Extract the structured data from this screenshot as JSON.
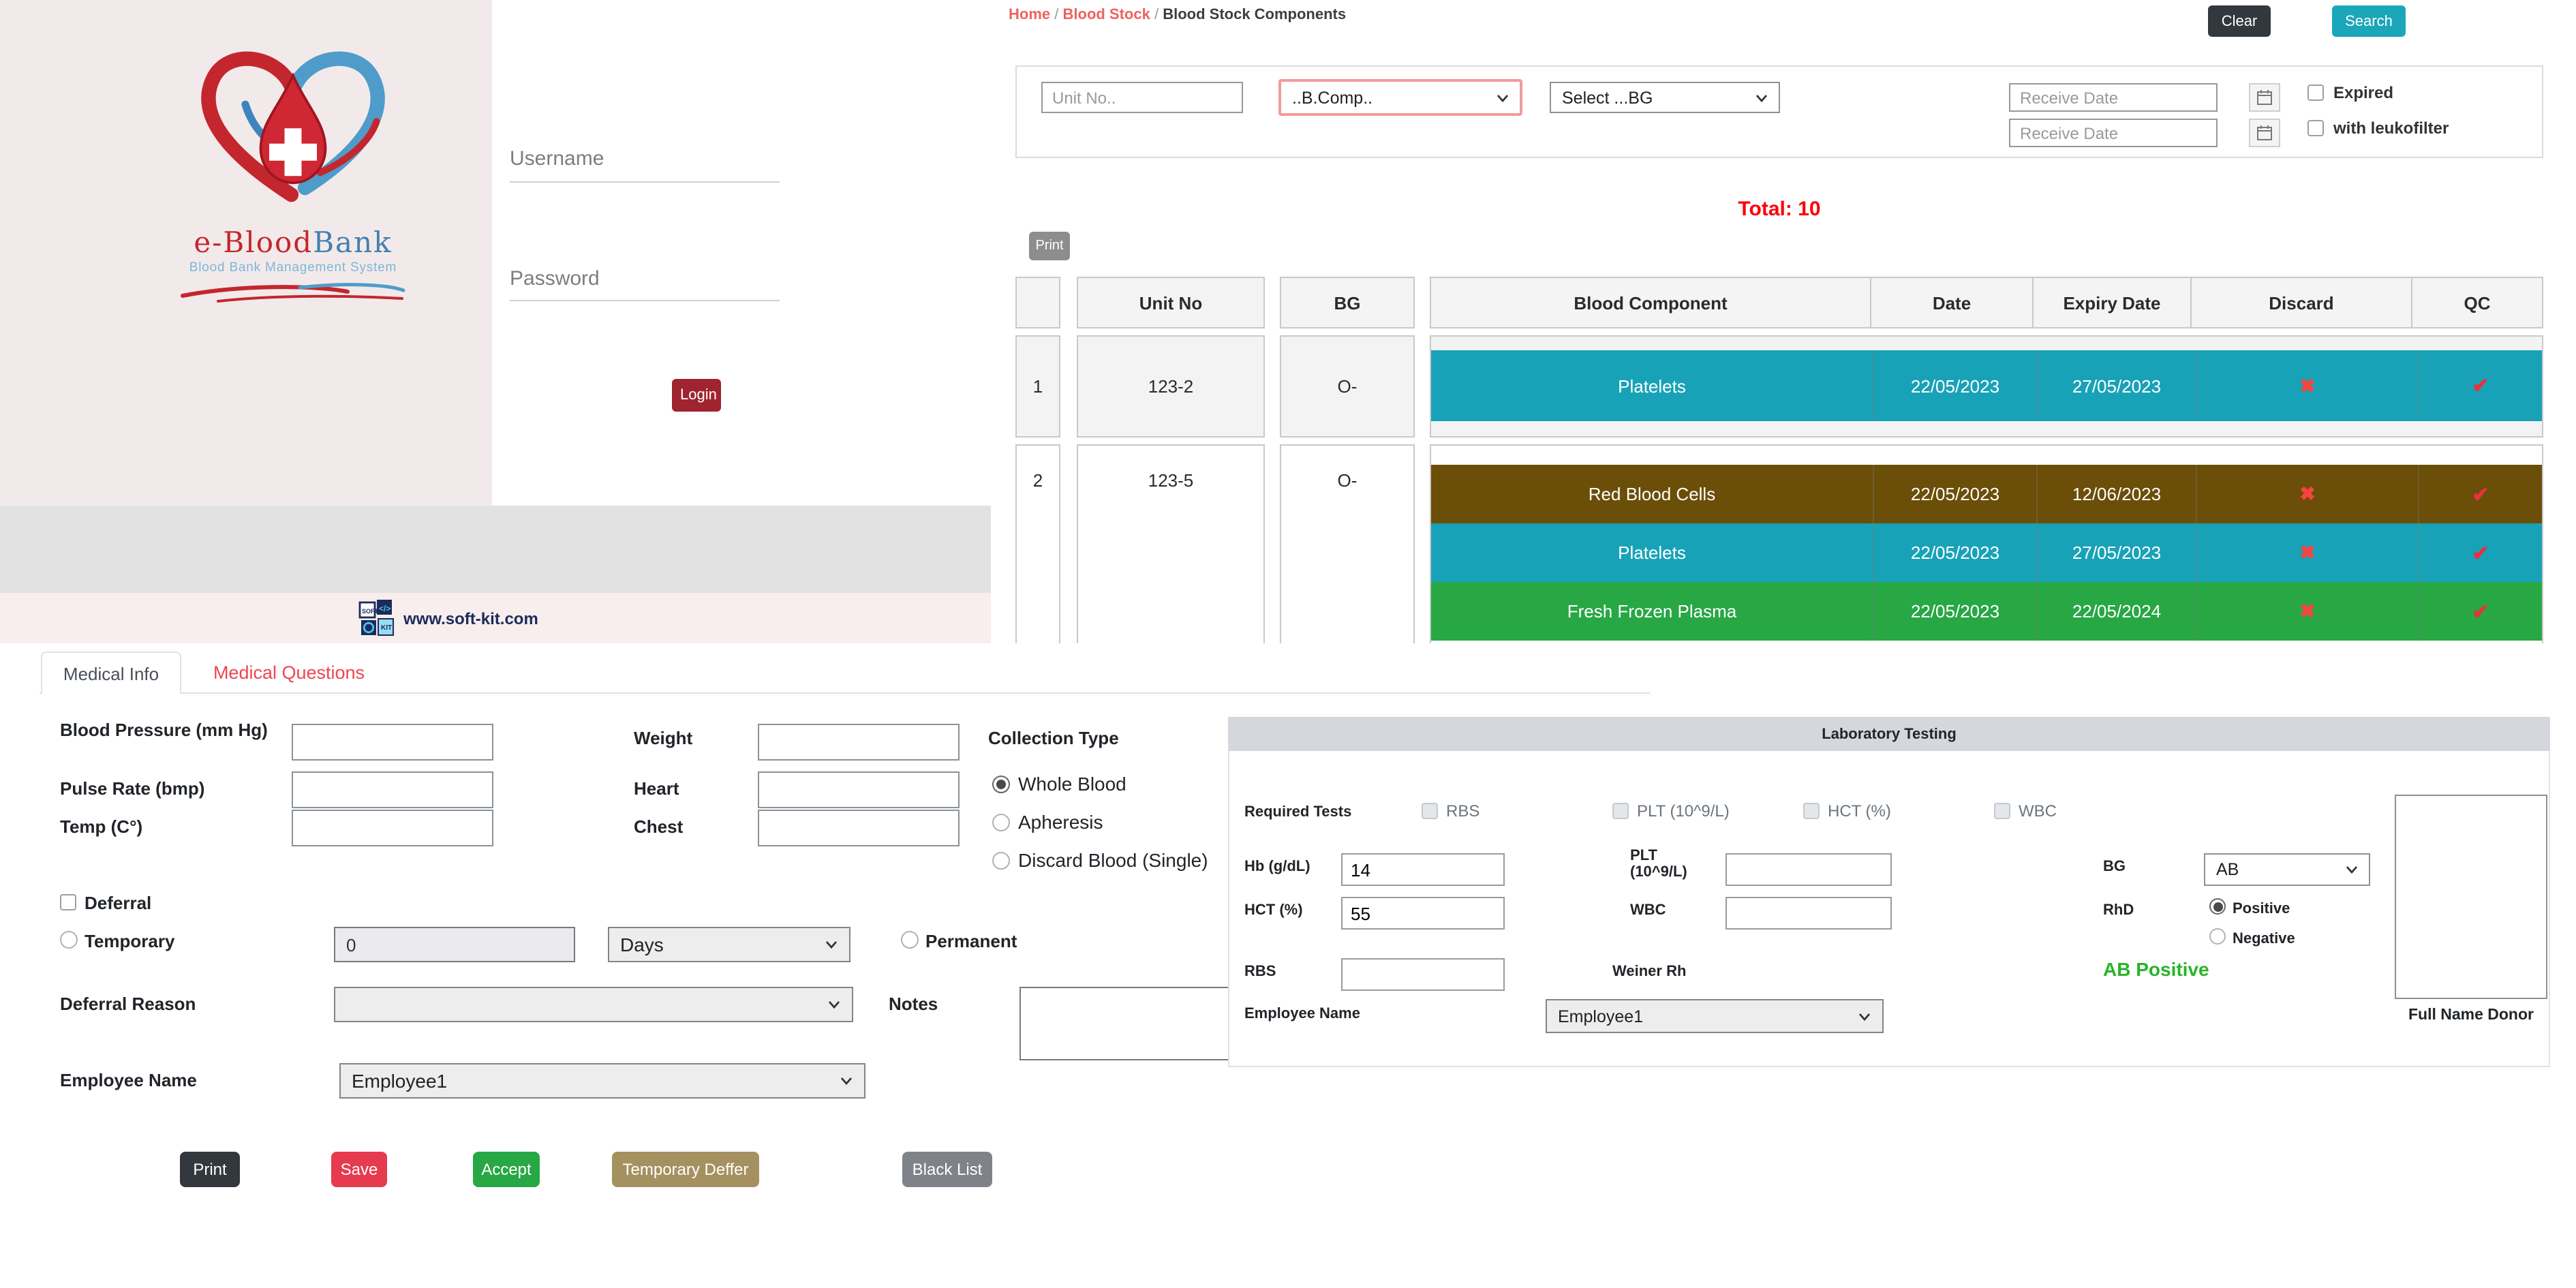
{
  "login": {
    "brand": {
      "title_red": "e-Blood",
      "title_blue": "Bank",
      "subtitle": "Blood Bank Management System"
    },
    "username_label": "Username",
    "password_label": "Password",
    "login_button": "Login",
    "footer_site": "www.soft-kit.com"
  },
  "stock": {
    "breadcrumb": {
      "home": "Home",
      "sep1": "/",
      "section": "Blood Stock",
      "sep2": "/",
      "current": "Blood Stock Components"
    },
    "clear_button": "Clear",
    "search_button": "Search",
    "filters": {
      "unit_no_placeholder": "Unit No..",
      "component_select_value": "..B.Comp..",
      "bg_select_value": "Select ...BG",
      "receive_date_from_placeholder": "Receive Date",
      "receive_date_to_placeholder": "Receive Date",
      "expired_label": "Expired",
      "leukofilter_label": "with leukofilter"
    },
    "total_label": "Total: 10",
    "print_button": "Print",
    "table": {
      "headers": {
        "unit_no": "Unit No",
        "bg": "BG",
        "component": "Blood Component",
        "date": "Date",
        "expiry": "Expiry Date",
        "discard": "Discard",
        "qc": "QC"
      },
      "discard_icon": "✖",
      "qc_icon": "✔",
      "band_colors": {
        "platelets": "#18a2b8",
        "red_blood_cells": "#6b4e08",
        "fresh_frozen_plasma": "#28a745"
      },
      "rows": [
        {
          "index": "1",
          "unit_no": "123-2",
          "bg": "O-",
          "shaded": true,
          "components": [
            {
              "name": "Platelets",
              "date": "22/05/2023",
              "expiry": "27/05/2023",
              "color": "#18a2b8"
            }
          ]
        },
        {
          "index": "2",
          "unit_no": "123-5",
          "bg": "O-",
          "shaded": false,
          "components": [
            {
              "name": "Red Blood Cells",
              "date": "22/05/2023",
              "expiry": "12/06/2023",
              "color": "#6b4e08"
            },
            {
              "name": "Platelets",
              "date": "22/05/2023",
              "expiry": "27/05/2023",
              "color": "#18a2b8"
            },
            {
              "name": "Fresh Frozen Plasma",
              "date": "22/05/2023",
              "expiry": "22/05/2024",
              "color": "#28a745"
            }
          ]
        }
      ]
    }
  },
  "medical": {
    "tabs": {
      "info": "Medical Info",
      "questions": "Medical Questions"
    },
    "fields": {
      "blood_pressure_label": "Blood Pressure (mm Hg)",
      "pulse_rate_label": "Pulse Rate (bmp)",
      "temp_label": "Temp (C°)",
      "weight_label": "Weight",
      "heart_label": "Heart",
      "chest_label": "Chest",
      "collection_type_label": "Collection Type",
      "collection_options": {
        "whole_blood": "Whole Blood",
        "apheresis": "Apheresis",
        "discard_blood": "Discard Blood (Single)"
      },
      "deferral_label": "Deferral",
      "temporary_label": "Temporary",
      "temporary_value": "0",
      "period_select_value": "Days",
      "permanent_label": "Permanent",
      "deferral_reason_label": "Deferral Reason",
      "deferral_reason_value": "",
      "notes_label": "Notes",
      "employee_name_label": "Employee Name",
      "employee_select_value": "Employee1"
    },
    "buttons": {
      "print": "Print",
      "save": "Save",
      "accept": "Accept",
      "temporary_deffer": "Temporary Deffer",
      "black_list": "Black List"
    }
  },
  "lab": {
    "title": "Laboratory Testing",
    "required_tests_label": "Required Tests",
    "test_checkboxes": {
      "rbs": "RBS",
      "plt": "PLT (10^9/L)",
      "hct": "HCT (%)",
      "wbc": "WBC"
    },
    "hb_label": "Hb (g/dL)",
    "hb_value": "14",
    "plt_label": "PLT (10^9/L)",
    "plt_value": "",
    "bg_label": "BG",
    "bg_select_value": "AB",
    "hct_label": "HCT (%)",
    "hct_value": "55",
    "wbc_label": "WBC",
    "wbc_value": "",
    "rhd_label": "RhD",
    "rhd_options": {
      "positive": "Positive",
      "negative": "Negative"
    },
    "rbs_label": "RBS",
    "rbs_value": "",
    "weiner_label": "Weiner Rh",
    "result_text": "AB Positive",
    "result_color": "#28b428",
    "employee_name_label": "Employee Name",
    "employee_select_value": "Employee1",
    "donor_box_label": "Full Name Donor"
  }
}
